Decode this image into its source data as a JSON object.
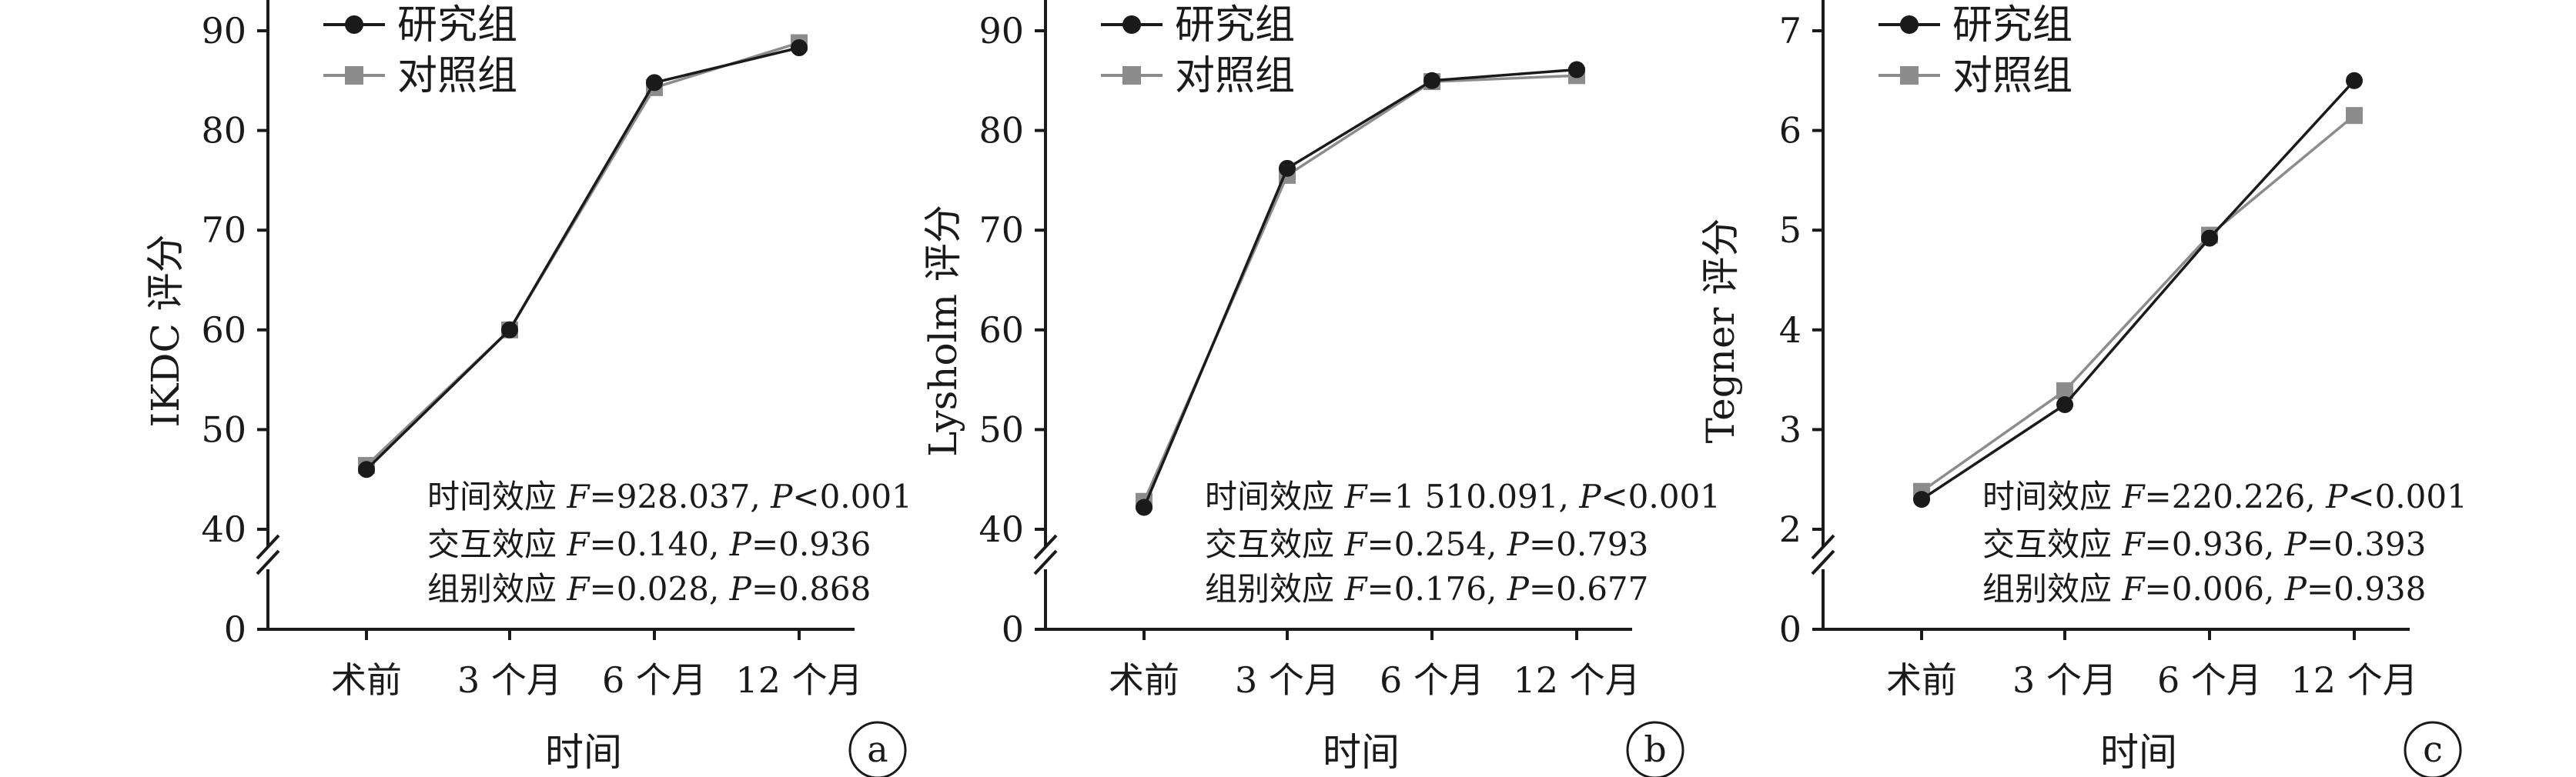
{
  "chart_data": [
    {
      "type": "line",
      "panel_label": "a",
      "ylabel": "IKDC 评分",
      "xlabel": "时间",
      "categories": [
        "术前",
        "3 个月",
        "6 个月",
        "12 个月"
      ],
      "y_ticks": [
        "0",
        "40",
        "50",
        "60",
        "70",
        "80",
        "90"
      ],
      "y_tick_values": [
        0,
        40,
        50,
        60,
        70,
        80,
        90
      ],
      "axis_break": true,
      "ylim": [
        40,
        90
      ],
      "series": [
        {
          "name": "研究组",
          "values": [
            46.0,
            60.0,
            84.8,
            88.3
          ]
        },
        {
          "name": "对照组",
          "values": [
            46.4,
            60.0,
            84.3,
            88.8
          ]
        }
      ],
      "annotations": [
        {
          "label": "时间效应 ",
          "f_value": "928.037",
          "p_value": "<0.001"
        },
        {
          "label": "交互效应 ",
          "f_value": "0.140",
          "p_value": "=0.936"
        },
        {
          "label": "组别效应 ",
          "f_value": "0.028",
          "p_value": "=0.868"
        }
      ]
    },
    {
      "type": "line",
      "panel_label": "b",
      "ylabel": "Lysholm 评分",
      "xlabel": "时间",
      "categories": [
        "术前",
        "3 个月",
        "6 个月",
        "12 个月"
      ],
      "y_ticks": [
        "0",
        "40",
        "50",
        "60",
        "70",
        "80",
        "90"
      ],
      "y_tick_values": [
        0,
        40,
        50,
        60,
        70,
        80,
        90
      ],
      "axis_break": true,
      "ylim": [
        40,
        90
      ],
      "series": [
        {
          "name": "研究组",
          "values": [
            42.2,
            76.2,
            85.0,
            86.1
          ]
        },
        {
          "name": "对照组",
          "values": [
            42.8,
            75.5,
            84.9,
            85.5
          ]
        }
      ],
      "annotations": [
        {
          "label": "时间效应 ",
          "f_value": "1 510.091",
          "p_value": "<0.001"
        },
        {
          "label": "交互效应 ",
          "f_value": "0.254",
          "p_value": "=0.793"
        },
        {
          "label": "组别效应 ",
          "f_value": "0.176",
          "p_value": "=0.677"
        }
      ]
    },
    {
      "type": "line",
      "panel_label": "c",
      "ylabel": "Tegner 评分",
      "xlabel": "时间",
      "categories": [
        "术前",
        "3 个月",
        "6 个月",
        "12 个月"
      ],
      "y_ticks": [
        "0",
        "2",
        "3",
        "4",
        "5",
        "6",
        "7"
      ],
      "y_tick_values": [
        0,
        2,
        3,
        4,
        5,
        6,
        7
      ],
      "axis_break": true,
      "ylim": [
        2,
        7
      ],
      "series": [
        {
          "name": "研究组",
          "values": [
            2.3,
            3.25,
            4.92,
            6.5
          ]
        },
        {
          "name": "对照组",
          "values": [
            2.38,
            3.39,
            4.95,
            6.15
          ]
        }
      ],
      "annotations": [
        {
          "label": "时间效应 ",
          "f_value": "220.226",
          "p_value": "<0.001"
        },
        {
          "label": "交互效应 ",
          "f_value": "0.936",
          "p_value": "=0.393"
        },
        {
          "label": "组别效应 ",
          "f_value": "0.006",
          "p_value": "=0.938"
        }
      ]
    }
  ],
  "stat_symbols": {
    "f": "F",
    "p": "P",
    "separator": ", "
  },
  "colors": {
    "study_group": "#1a1a1a",
    "control_group": "#8c8c8c",
    "axis": "#1a1a1a"
  }
}
